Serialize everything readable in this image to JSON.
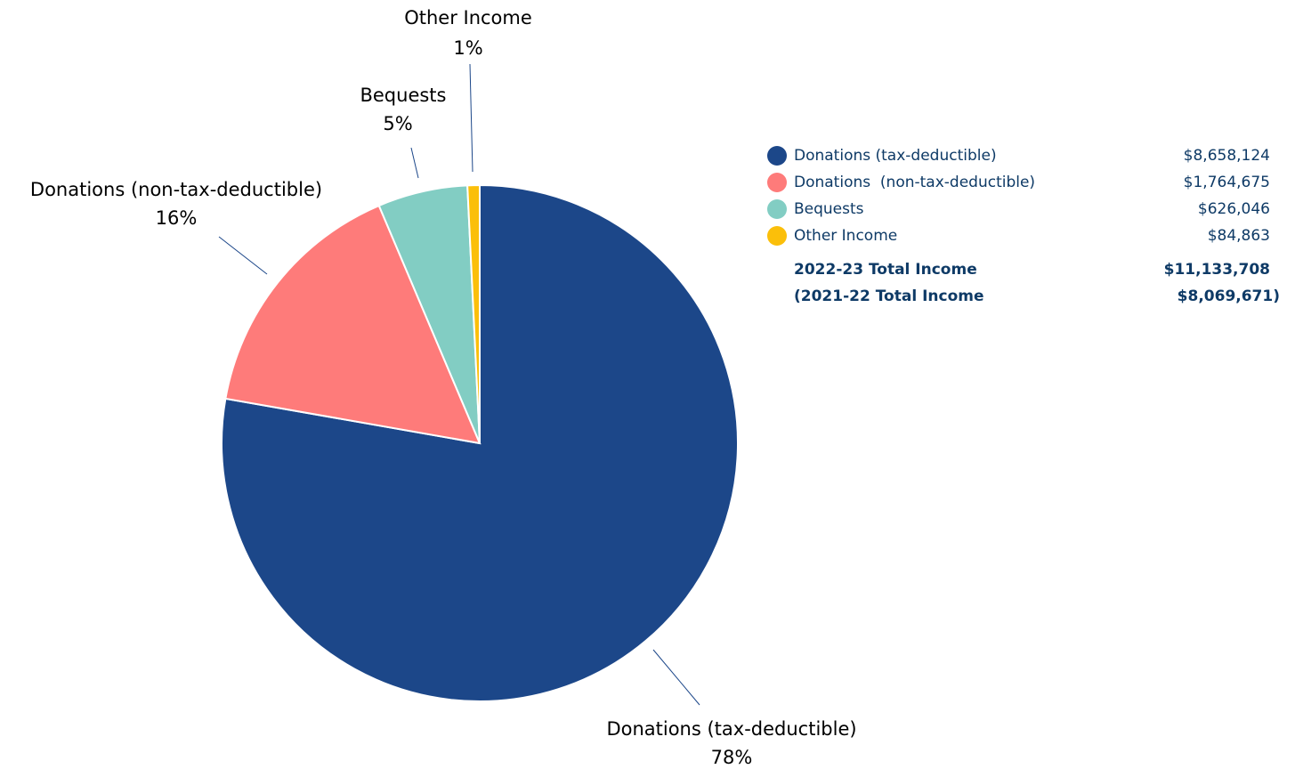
{
  "chart_data": {
    "type": "pie",
    "categories": [
      "Donations (tax-deductible)",
      "Donations (non-tax-deductible)",
      "Bequests",
      "Other Income"
    ],
    "values": [
      8658124,
      1764675,
      626046,
      84863
    ],
    "percent_labels": [
      "78%",
      "16%",
      "5%",
      "1%"
    ],
    "colors": [
      "#1c4789",
      "#fe7b7a",
      "#82cdc3",
      "#fbbf0a"
    ]
  },
  "slice_labels": [
    {
      "name": "Donations (tax-deductible)",
      "pct": "78%"
    },
    {
      "name": "Donations (non-tax-deductible)",
      "pct": "16%"
    },
    {
      "name": "Bequests",
      "pct": "5%"
    },
    {
      "name": "Other Income",
      "pct": "1%"
    }
  ],
  "legend": {
    "items": [
      {
        "label": "Donations (tax-deductible)",
        "amount": "$8,658,124",
        "color": "#1c4789"
      },
      {
        "label": "Donations  (non-tax-deductible)",
        "amount": "$1,764,675",
        "color": "#fe7b7a"
      },
      {
        "label": "Bequests",
        "amount": "$626,046",
        "color": "#82cdc3"
      },
      {
        "label": "Other Income",
        "amount": "$84,863",
        "color": "#fbbf0a"
      }
    ],
    "total_current_label": "2022-23 Total Income",
    "total_current_amount": "$11,133,708",
    "total_previous_label": "(2021-22 Total Income",
    "total_previous_amount": "$8,069,671)"
  }
}
